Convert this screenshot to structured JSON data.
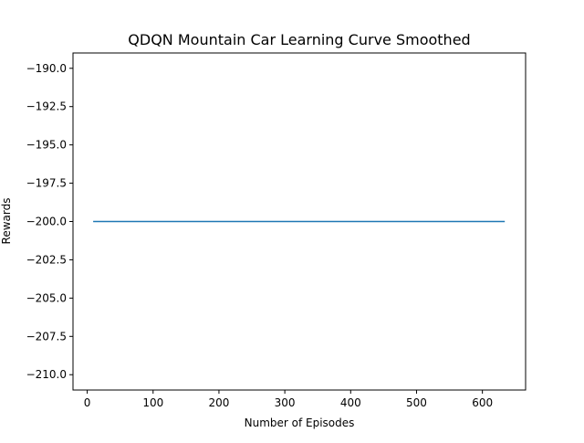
{
  "chart_data": {
    "type": "line",
    "title": "QDQN Mountain Car Learning Curve Smoothed",
    "xlabel": "Number of Episodes",
    "ylabel": "Rewards",
    "xlim": [
      -21.6,
      665.6
    ],
    "ylim": [
      -211.0,
      -189.0
    ],
    "xticks": [
      0,
      100,
      200,
      300,
      400,
      500,
      600
    ],
    "xtick_labels": [
      "0",
      "100",
      "200",
      "300",
      "400",
      "500",
      "600"
    ],
    "yticks": [
      -190.0,
      -192.5,
      -195.0,
      -197.5,
      -200.0,
      -202.5,
      -205.0,
      -207.5,
      -210.0
    ],
    "ytick_labels": [
      "−190.0",
      "−192.5",
      "−195.0",
      "−197.5",
      "−200.0",
      "−202.5",
      "−205.0",
      "−207.5",
      "−210.0"
    ],
    "grid": false,
    "legend": "none",
    "series": [
      {
        "color": "#1f77b4",
        "x": [
          9,
          634
        ],
        "y": [
          -200.0,
          -200.0
        ]
      }
    ]
  }
}
